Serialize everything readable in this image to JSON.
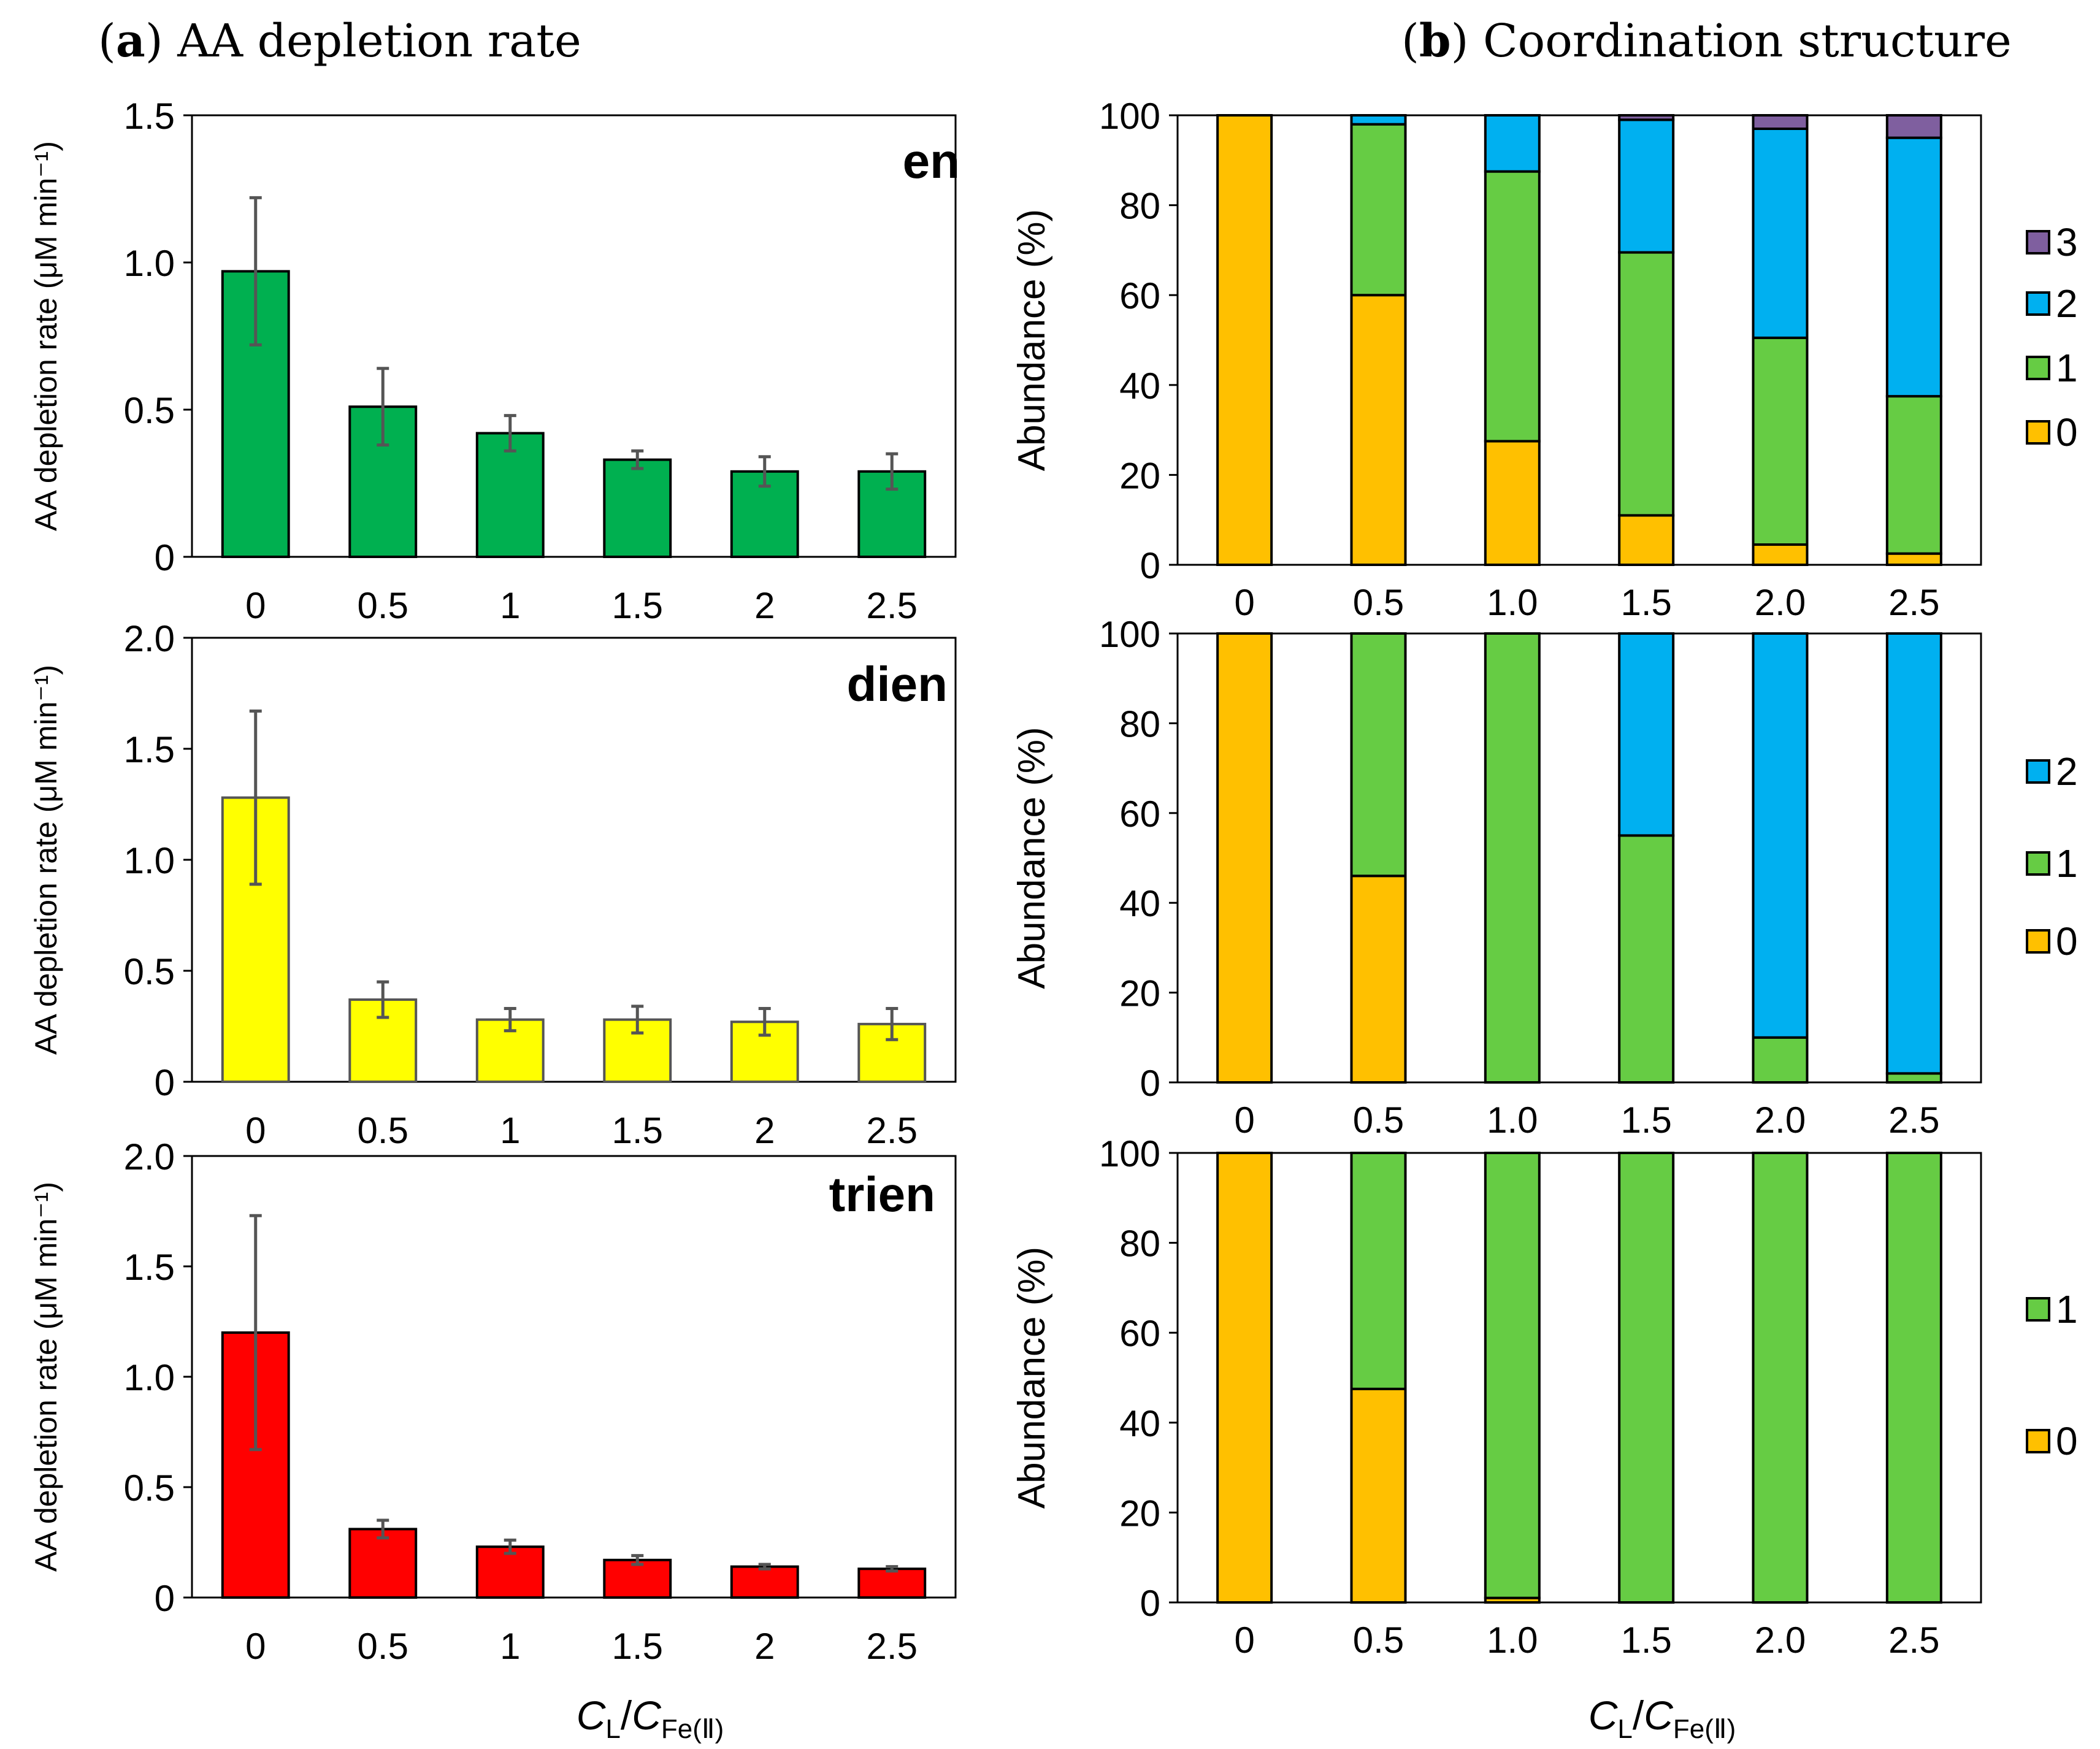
{
  "panel_a": {
    "letter": "a",
    "title": "AA depletion rate",
    "xlabel_main": "C",
    "xlabel_sub1": "L",
    "xlabel_slash": "/",
    "xlabel_main2": "C",
    "xlabel_sub2": "Fe(Ⅱ)"
  },
  "panel_b": {
    "letter": "b",
    "title": "Coordination structure",
    "xlabel_main": "C",
    "xlabel_sub1": "L",
    "xlabel_slash": "/",
    "xlabel_main2": "C",
    "xlabel_sub2": "Fe(Ⅱ)"
  },
  "colors": {
    "en": "#00b050",
    "dien": "#ffff00",
    "trien": "#ff0000",
    "c0": "#ffc000",
    "c1": "#66cc44",
    "c2": "#00b0f0",
    "c3": "#7f5f9f",
    "errorbar": "#555555"
  },
  "chart_data": [
    {
      "type": "bar",
      "id": "rate_en",
      "annotation": "en",
      "ylabel": "AA depletion rate (μM min⁻¹)",
      "categories": [
        "0",
        "0.5",
        "1",
        "1.5",
        "2",
        "2.5"
      ],
      "values": [
        0.97,
        0.51,
        0.42,
        0.33,
        0.29,
        0.29
      ],
      "errors": [
        0.25,
        0.13,
        0.06,
        0.03,
        0.05,
        0.06
      ],
      "ylim": [
        0,
        1.5
      ],
      "yticks": [
        "0",
        "0.5",
        "1.0",
        "1.5"
      ],
      "color": "#00b050"
    },
    {
      "type": "bar",
      "id": "rate_dien",
      "annotation": "dien",
      "ylabel": "AA depletion rate (μM min⁻¹)",
      "categories": [
        "0",
        "0.5",
        "1",
        "1.5",
        "2",
        "2.5"
      ],
      "values": [
        1.28,
        0.37,
        0.28,
        0.28,
        0.27,
        0.26
      ],
      "errors": [
        0.39,
        0.08,
        0.05,
        0.06,
        0.06,
        0.07
      ],
      "ylim": [
        0,
        2.0
      ],
      "yticks": [
        "0",
        "0.5",
        "1.0",
        "1.5",
        "2.0"
      ],
      "color": "#ffff00"
    },
    {
      "type": "bar",
      "id": "rate_trien",
      "annotation": "trien",
      "ylabel": "AA depletion rate (μM min⁻¹)",
      "categories": [
        "0",
        "0.5",
        "1",
        "1.5",
        "2",
        "2.5"
      ],
      "values": [
        1.2,
        0.31,
        0.23,
        0.17,
        0.14,
        0.13
      ],
      "errors": [
        0.53,
        0.04,
        0.03,
        0.02,
        0.01,
        0.01
      ],
      "ylim": [
        0,
        2.0
      ],
      "yticks": [
        "0",
        "0.5",
        "1.0",
        "1.5",
        "2.0"
      ],
      "color": "#ff0000"
    },
    {
      "type": "stacked_bar",
      "id": "coord_en",
      "ylabel": "Abundance (%)",
      "categories": [
        "0",
        "0.5",
        "1.0",
        "1.5",
        "2.0",
        "2.5"
      ],
      "ylim": [
        0,
        100
      ],
      "yticks": [
        "0",
        "20",
        "40",
        "60",
        "80",
        "100"
      ],
      "legend": [
        "3",
        "2",
        "1",
        "0"
      ],
      "series": [
        {
          "name": "0",
          "values": [
            100,
            60,
            27.5,
            11,
            4.5,
            2.5
          ]
        },
        {
          "name": "1",
          "values": [
            0,
            38,
            60,
            58.5,
            46,
            35
          ]
        },
        {
          "name": "2",
          "values": [
            0,
            2,
            12.5,
            29.5,
            46.5,
            57.5
          ]
        },
        {
          "name": "3",
          "values": [
            0,
            0,
            0,
            1,
            3,
            5
          ]
        }
      ]
    },
    {
      "type": "stacked_bar",
      "id": "coord_dien",
      "ylabel": "Abundance (%)",
      "categories": [
        "0",
        "0.5",
        "1.0",
        "1.5",
        "2.0",
        "2.5"
      ],
      "ylim": [
        0,
        100
      ],
      "yticks": [
        "0",
        "20",
        "40",
        "60",
        "80",
        "100"
      ],
      "legend": [
        "2",
        "1",
        "0"
      ],
      "series": [
        {
          "name": "0",
          "values": [
            100,
            46,
            0,
            0,
            0,
            0
          ]
        },
        {
          "name": "1",
          "values": [
            0,
            54,
            100,
            55,
            10,
            2
          ]
        },
        {
          "name": "2",
          "values": [
            0,
            0,
            0,
            45,
            90,
            98
          ]
        }
      ]
    },
    {
      "type": "stacked_bar",
      "id": "coord_trien",
      "ylabel": "Abundance (%)",
      "categories": [
        "0",
        "0.5",
        "1.0",
        "1.5",
        "2.0",
        "2.5"
      ],
      "ylim": [
        0,
        100
      ],
      "yticks": [
        "0",
        "20",
        "40",
        "60",
        "80",
        "100"
      ],
      "legend": [
        "1",
        "0"
      ],
      "series": [
        {
          "name": "0",
          "values": [
            100,
            47.5,
            1,
            0,
            0,
            0
          ]
        },
        {
          "name": "1",
          "values": [
            0,
            52.5,
            99,
            100,
            100,
            100
          ]
        }
      ]
    }
  ]
}
